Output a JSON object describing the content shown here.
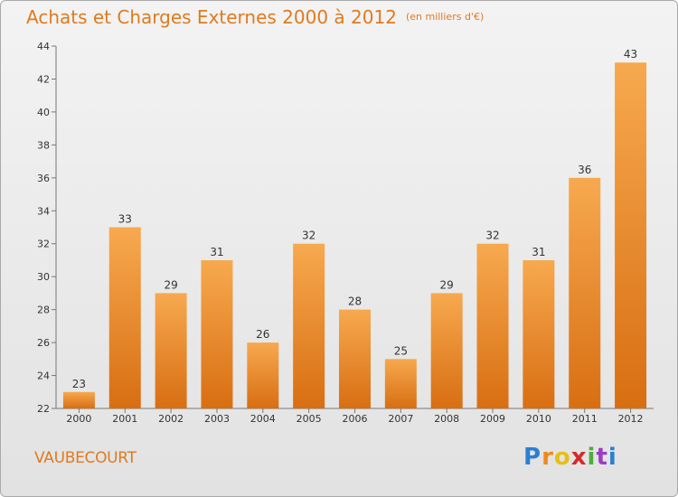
{
  "header": {
    "title": "Achats et Charges Externes 2000 à 2012",
    "unit": "(en milliers d'€)"
  },
  "footer": {
    "commune": "VAUBECOURT",
    "logo_text": "Proxiti"
  },
  "colors": {
    "accent": "#e07a1e",
    "bar_top": "#f7a94f",
    "bar_bottom": "#d86e12"
  },
  "chart_data": {
    "type": "bar",
    "categories": [
      "2000",
      "2001",
      "2002",
      "2003",
      "2004",
      "2005",
      "2006",
      "2007",
      "2008",
      "2009",
      "2010",
      "2011",
      "2012"
    ],
    "values": [
      23,
      33,
      29,
      31,
      26,
      32,
      28,
      25,
      29,
      32,
      31,
      36,
      43
    ],
    "ylim": [
      22,
      44
    ],
    "yticks": [
      22,
      24,
      26,
      28,
      30,
      32,
      34,
      36,
      38,
      40,
      42,
      44
    ],
    "grid": false,
    "legend": "none"
  }
}
